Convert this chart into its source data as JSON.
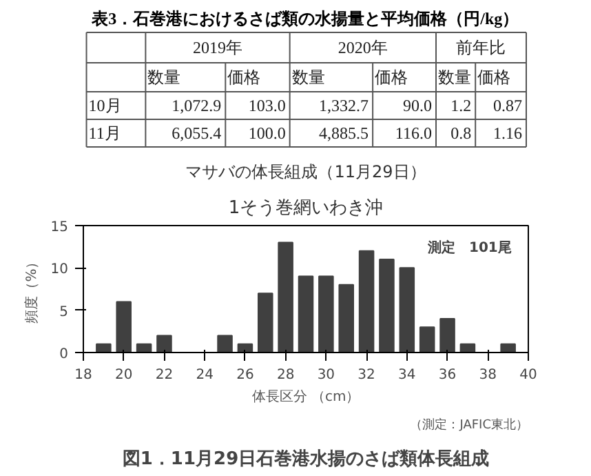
{
  "chart_data": [
    {
      "type": "other",
      "title": "表3．石巻港におけるさば類の水揚量と平均価格（円/kg）",
      "annotations": [
        "2019年",
        "2020年",
        "前年比",
        "数量",
        "価格",
        "数量",
        "価格",
        "数量",
        "価格",
        "10月",
        "1,072.9",
        "103.0",
        "1,332.7",
        "90.0",
        "1.2",
        "0.87",
        "11月",
        "6,055.4",
        "100.0",
        "4,885.5",
        "116.0",
        "0.8",
        "1.16"
      ]
    },
    {
      "type": "bar",
      "title": "マサバの体長組成（11月29日）",
      "subtitle": "1そう巻網いわき沖",
      "xlabel": "体長区分 （cm）",
      "ylabel": "頻度（%）",
      "x": [
        19,
        20,
        21,
        22,
        23,
        24,
        25,
        26,
        27,
        28,
        29,
        30,
        31,
        32,
        33,
        34,
        35,
        36,
        37,
        38,
        39
      ],
      "values": [
        1,
        6,
        1,
        2,
        0,
        0,
        2,
        1,
        7,
        13,
        9,
        9,
        8,
        12,
        11,
        10,
        3,
        4,
        1,
        0,
        1
      ],
      "color": "#404040",
      "xlim": [
        18,
        40
      ],
      "xticks": [
        18,
        20,
        22,
        24,
        26,
        28,
        30,
        32,
        34,
        36,
        38,
        40
      ],
      "ylim": [
        0,
        15
      ],
      "yticks": [
        0,
        5,
        10,
        15
      ],
      "grid": false,
      "annotations": [
        "測定　101尾",
        "（測定：JAFIC東北）",
        "図1．11月29日石巻港水揚のさば類体長組成"
      ]
    }
  ]
}
